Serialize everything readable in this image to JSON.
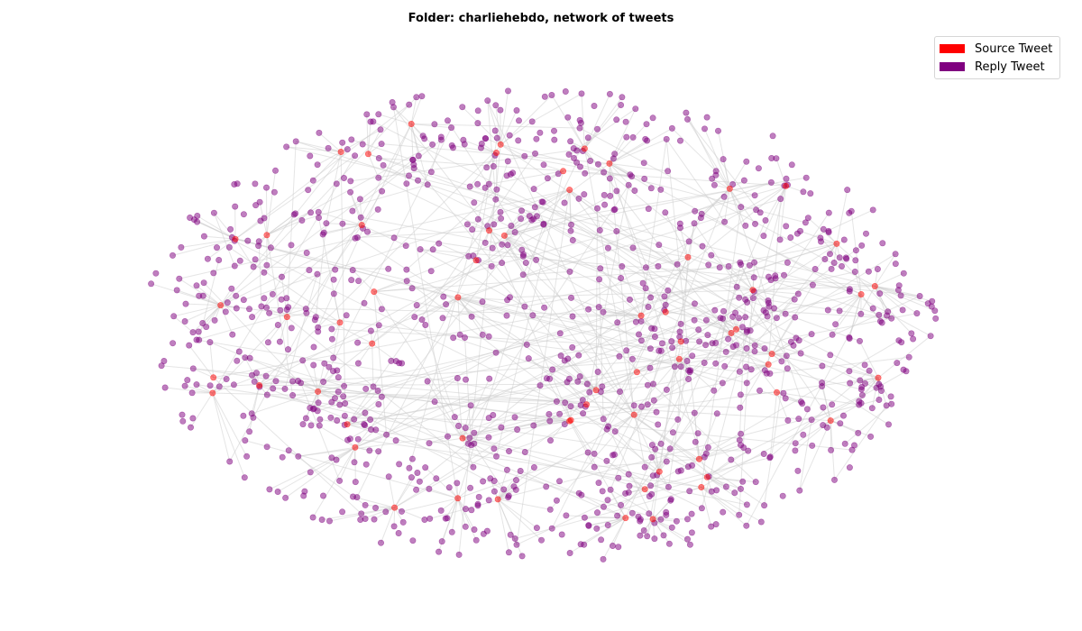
{
  "title": "Folder: charliehebdo, network of tweets",
  "legend": {
    "items": [
      {
        "label": "Source Tweet",
        "color": "#ff0000"
      },
      {
        "label": "Reply Tweet",
        "color": "#800080"
      }
    ]
  },
  "colors": {
    "source_node": "#ff0000",
    "reply_node": "#800080",
    "edge": "#cccccc",
    "background": "#ffffff"
  },
  "chart_data": {
    "type": "network",
    "title": "Folder: charliehebdo, network of tweets",
    "node_types": [
      "Source Tweet",
      "Reply Tweet"
    ],
    "axes": "off",
    "grid": false,
    "legend_position": "top-right",
    "layout": "spring / force-directed, roughly elliptical cloud"
  }
}
